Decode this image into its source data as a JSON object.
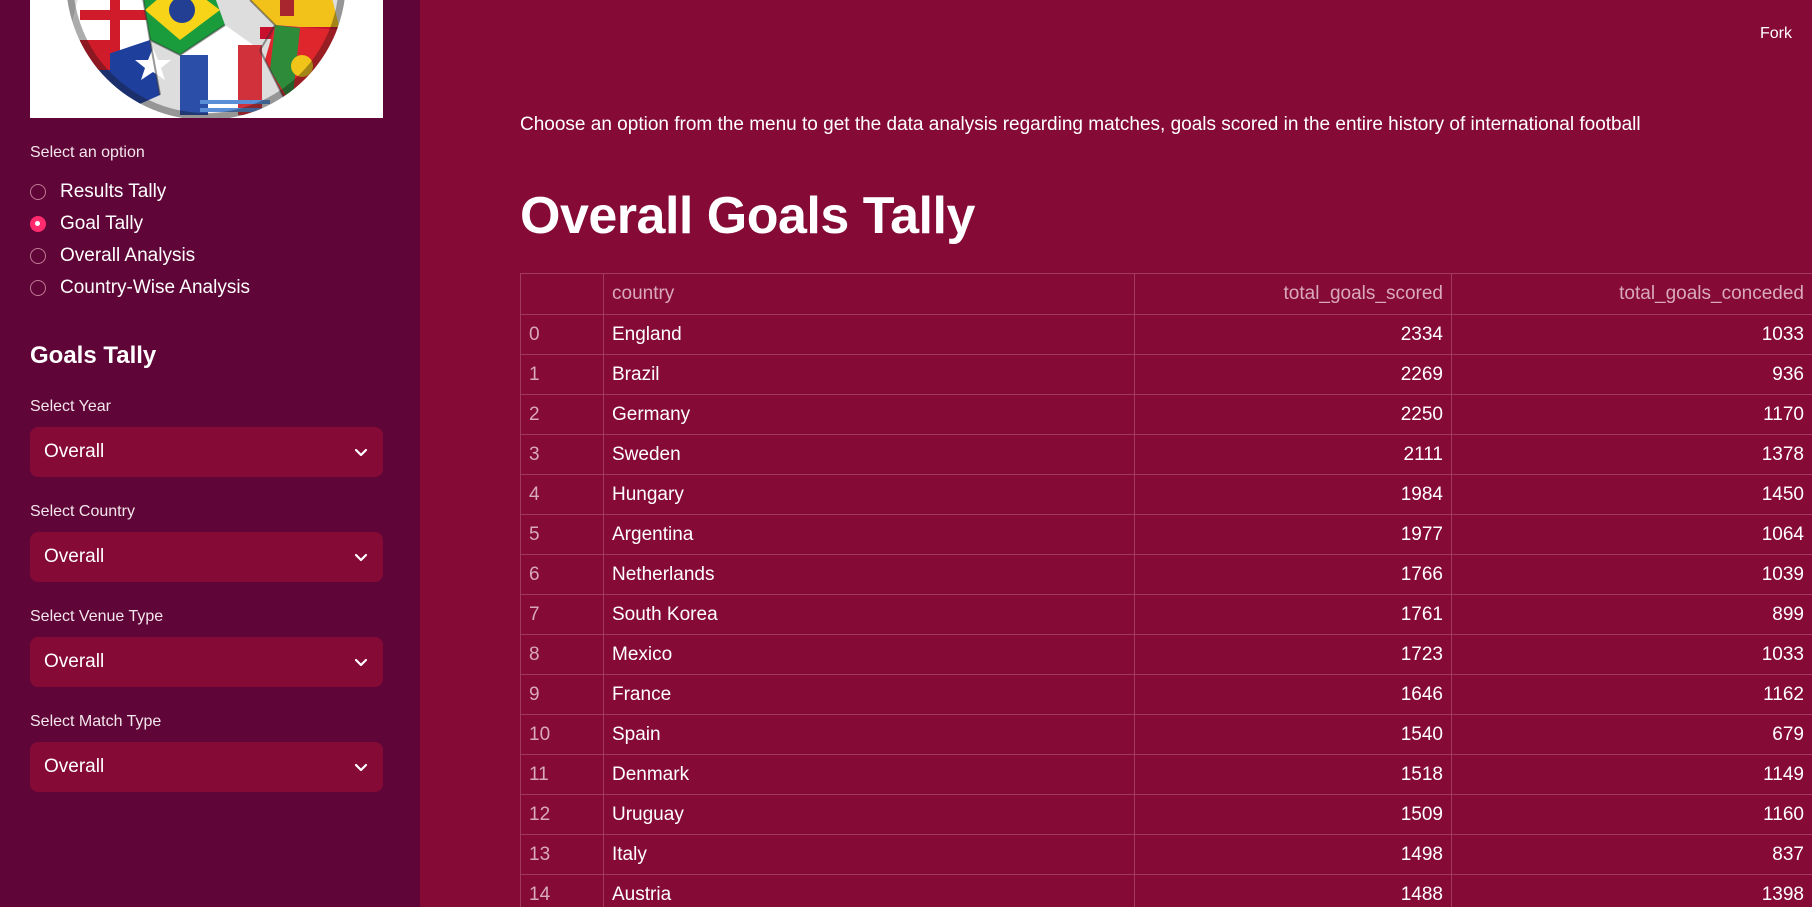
{
  "sidebar": {
    "option_label": "Select an option",
    "options": [
      {
        "label": "Results Tally",
        "selected": false
      },
      {
        "label": "Goal Tally",
        "selected": true
      },
      {
        "label": "Overall Analysis",
        "selected": false
      },
      {
        "label": "Country-Wise Analysis",
        "selected": false
      }
    ],
    "section_title": "Goals Tally",
    "filters": {
      "year": {
        "label": "Select Year",
        "value": "Overall"
      },
      "country": {
        "label": "Select Country",
        "value": "Overall"
      },
      "venue": {
        "label": "Select Venue Type",
        "value": "Overall"
      },
      "match": {
        "label": "Select Match Type",
        "value": "Overall"
      }
    }
  },
  "header": {
    "fork_label": "Fork"
  },
  "main": {
    "intro": "Choose an option from the menu to get the data analysis regarding matches, goals scored in the entire history of international football",
    "title": "Overall Goals Tally",
    "table": {
      "columns": [
        "",
        "country",
        "total_goals_scored",
        "total_goals_conceded"
      ],
      "rows": [
        [
          "0",
          "England",
          "2334",
          "1033"
        ],
        [
          "1",
          "Brazil",
          "2269",
          "936"
        ],
        [
          "2",
          "Germany",
          "2250",
          "1170"
        ],
        [
          "3",
          "Sweden",
          "2111",
          "1378"
        ],
        [
          "4",
          "Hungary",
          "1984",
          "1450"
        ],
        [
          "5",
          "Argentina",
          "1977",
          "1064"
        ],
        [
          "6",
          "Netherlands",
          "1766",
          "1039"
        ],
        [
          "7",
          "South Korea",
          "1761",
          "899"
        ],
        [
          "8",
          "Mexico",
          "1723",
          "1033"
        ],
        [
          "9",
          "France",
          "1646",
          "1162"
        ],
        [
          "10",
          "Spain",
          "1540",
          "679"
        ],
        [
          "11",
          "Denmark",
          "1518",
          "1149"
        ],
        [
          "12",
          "Uruguay",
          "1509",
          "1160"
        ],
        [
          "13",
          "Italy",
          "1498",
          "837"
        ],
        [
          "14",
          "Austria",
          "1488",
          "1398"
        ]
      ]
    }
  },
  "colors": {
    "main_bg": "#850a35",
    "sidebar_bg": "#5f0537",
    "accent": "#ff2b6e"
  },
  "icons": {
    "select_chevron": "chevron-down-icon",
    "radio_selected": "radio-checked-icon",
    "sidebar_image": "world-flags-football-image"
  }
}
